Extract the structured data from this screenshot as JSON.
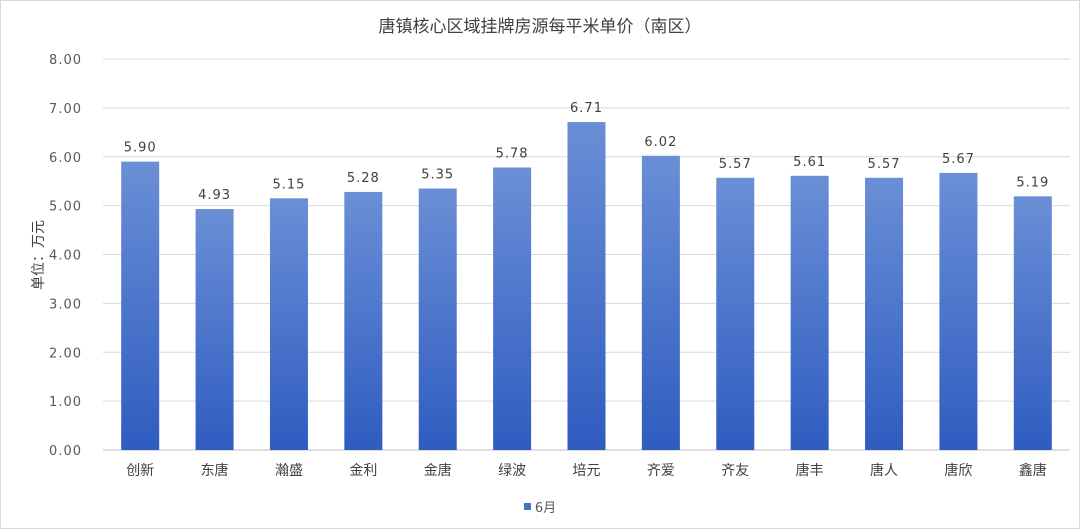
{
  "chart_data": {
    "type": "bar",
    "title": "唐镇核心区域挂牌房源每平米单价（南区）",
    "ylabel": "单位：万元",
    "xlabel": "",
    "ylim": [
      0,
      8
    ],
    "yticks": [
      "0.00",
      "1.00",
      "2.00",
      "3.00",
      "4.00",
      "5.00",
      "6.00",
      "7.00",
      "8.00"
    ],
    "categories": [
      "创新",
      "东唐",
      "瀚盛",
      "金利",
      "金唐",
      "绿波",
      "培元",
      "齐爱",
      "齐友",
      "唐丰",
      "唐人",
      "唐欣",
      "鑫唐"
    ],
    "series": [
      {
        "name": "6月",
        "values": [
          5.9,
          4.93,
          5.15,
          5.28,
          5.35,
          5.78,
          6.71,
          6.02,
          5.57,
          5.61,
          5.57,
          5.67,
          5.19
        ],
        "labels": [
          "5.90",
          "4.93",
          "5.15",
          "5.28",
          "5.35",
          "5.78",
          "6.71",
          "6.02",
          "5.57",
          "5.61",
          "5.57",
          "5.67",
          "5.19"
        ],
        "color": "#4472c4"
      }
    ],
    "grid": true,
    "legend_position": "bottom"
  }
}
